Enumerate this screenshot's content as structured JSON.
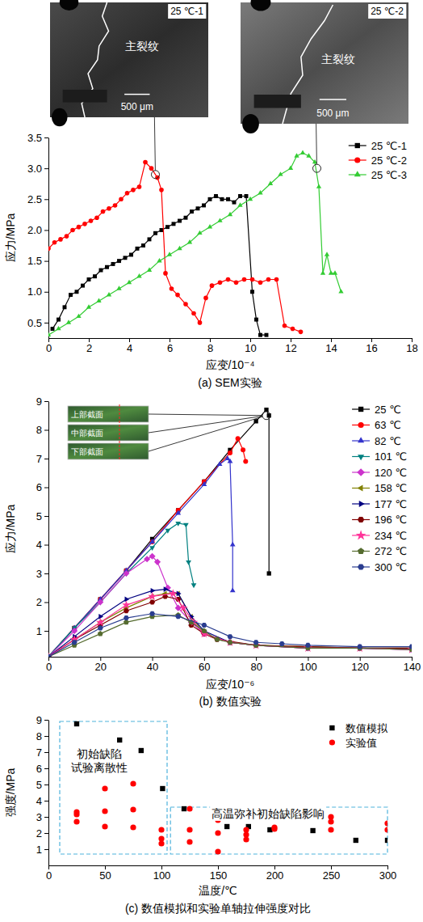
{
  "chart_data": [
    {
      "type": "line",
      "caption": "(a) SEM实验",
      "x_label": "应变/10⁻⁴",
      "y_label": "应力/MPa",
      "xlim": [
        0,
        18
      ],
      "xticks": [
        0,
        2,
        4,
        6,
        8,
        10,
        12,
        14,
        16,
        18
      ],
      "ylim": [
        0.25,
        3.5
      ],
      "yticks": [
        0.5,
        {
          "value": 1,
          "label": "1.0"
        },
        1.5,
        {
          "value": 2,
          "label": "2.0"
        },
        2.5,
        {
          "value": 3,
          "label": "3.0"
        },
        3.5
      ],
      "legend": "upper right",
      "series": [
        {
          "name": "25 ℃-1",
          "color": "#000000",
          "marker": "square",
          "x": [
            0.2,
            0.5,
            0.8,
            1.1,
            1.4,
            1.7,
            2.0,
            2.3,
            2.6,
            2.9,
            3.2,
            3.5,
            3.8,
            4.1,
            4.4,
            4.7,
            5.0,
            5.3,
            5.6,
            5.9,
            6.2,
            6.5,
            6.8,
            7.1,
            7.4,
            7.7,
            8.0,
            8.3,
            8.6,
            8.9,
            9.2,
            9.5,
            9.8,
            10.1,
            10.3,
            10.5,
            10.8
          ],
          "values": [
            0.4,
            0.55,
            0.75,
            0.95,
            1.0,
            1.1,
            1.2,
            1.25,
            1.35,
            1.4,
            1.45,
            1.5,
            1.55,
            1.6,
            1.7,
            1.75,
            1.85,
            1.95,
            2.0,
            2.05,
            2.1,
            2.15,
            2.2,
            2.3,
            2.35,
            2.4,
            2.5,
            2.55,
            2.5,
            2.5,
            2.45,
            2.55,
            2.55,
            1.0,
            0.55,
            0.3,
            0.3
          ]
        },
        {
          "name": "25 ℃-2",
          "color": "#ff0000",
          "marker": "circle",
          "x": [
            0,
            0.3,
            0.6,
            0.9,
            1.2,
            1.5,
            1.8,
            2.1,
            2.4,
            2.7,
            3.0,
            3.3,
            3.6,
            3.9,
            4.2,
            4.5,
            4.8,
            5.1,
            5.4,
            5.6,
            5.8,
            6.1,
            6.4,
            6.8,
            7.2,
            7.5,
            7.8,
            8.1,
            8.5,
            8.9,
            9.3,
            9.7,
            10.1,
            10.5,
            10.9,
            11.3,
            11.7,
            12.1,
            12.5
          ],
          "values": [
            1.7,
            1.8,
            1.85,
            1.9,
            2.0,
            2.05,
            2.1,
            2.15,
            2.2,
            2.3,
            2.35,
            2.4,
            2.5,
            2.6,
            2.65,
            2.7,
            3.1,
            3.0,
            2.85,
            2.65,
            1.3,
            1.05,
            0.95,
            0.8,
            0.65,
            0.5,
            0.9,
            1.1,
            1.15,
            1.2,
            1.15,
            1.2,
            1.2,
            1.15,
            1.2,
            1.2,
            0.45,
            0.4,
            0.35
          ]
        },
        {
          "name": "25 ℃-3",
          "color": "#33cc33",
          "marker": "triangle-up",
          "x": [
            0,
            0.5,
            1,
            1.5,
            2,
            2.5,
            3,
            3.5,
            4,
            4.5,
            5,
            5.5,
            6,
            6.5,
            7,
            7.5,
            8,
            8.5,
            9,
            9.5,
            10,
            10.5,
            11,
            11.5,
            12,
            12.3,
            12.6,
            12.9,
            13.2,
            13.4,
            13.6,
            13.8,
            14.0,
            14.2,
            14.5
          ],
          "values": [
            0.3,
            0.4,
            0.5,
            0.6,
            0.75,
            0.85,
            0.95,
            1.05,
            1.15,
            1.25,
            1.35,
            1.5,
            1.6,
            1.7,
            1.8,
            1.95,
            2.05,
            2.15,
            2.25,
            2.4,
            2.5,
            2.6,
            2.75,
            2.9,
            3.0,
            3.2,
            3.25,
            3.2,
            3.1,
            2.7,
            1.3,
            1.6,
            1.3,
            1.3,
            1.0
          ]
        }
      ],
      "insets": [
        {
          "label": "25 ℃-1",
          "crack_label": "主裂纹",
          "scale_label": "500 μm",
          "point": [
            5.3,
            2.9
          ]
        },
        {
          "label": "25 ℃-2",
          "crack_label": "主裂纹",
          "scale_label": "500 μm",
          "point": [
            13.3,
            3.0
          ]
        }
      ]
    },
    {
      "type": "line",
      "caption": "(b) 数值实验",
      "x_label": "应变/10⁻⁶",
      "y_label": "应力/MPa",
      "xlim": [
        0,
        140
      ],
      "xticks": [
        0,
        20,
        40,
        60,
        80,
        100,
        120,
        140
      ],
      "ylim": [
        0.1,
        9
      ],
      "yticks": [
        1,
        2,
        3,
        4,
        5,
        6,
        7,
        8,
        9
      ],
      "legend": "upper right",
      "series": [
        {
          "name": "25 ℃",
          "color": "#000000",
          "marker": "square",
          "x": [
            0,
            10,
            20,
            30,
            40,
            50,
            60,
            70,
            80,
            84,
            85,
            85
          ],
          "values": [
            0.1,
            1.1,
            2.1,
            3.1,
            4.2,
            5.2,
            6.2,
            7.3,
            8.3,
            8.7,
            8.5,
            3.0
          ]
        },
        {
          "name": "63 ℃",
          "color": "#ff0000",
          "marker": "circle",
          "x": [
            0,
            10,
            20,
            30,
            40,
            50,
            60,
            70,
            73,
            75,
            76
          ],
          "values": [
            0.1,
            1.1,
            2.1,
            3.1,
            4.1,
            5.2,
            6.2,
            7.2,
            7.7,
            7.3,
            6.9
          ]
        },
        {
          "name": "82 ℃",
          "color": "#3333cc",
          "marker": "triangle-up",
          "x": [
            0,
            10,
            20,
            30,
            40,
            50,
            60,
            66,
            69,
            70,
            71,
            71
          ],
          "values": [
            0.1,
            1.1,
            2.1,
            3.1,
            4.1,
            5.1,
            6.1,
            6.8,
            7.0,
            6.9,
            4.0,
            2.4
          ]
        },
        {
          "name": "101 ℃",
          "color": "#008080",
          "marker": "triangle-down",
          "x": [
            0,
            10,
            20,
            30,
            40,
            46,
            50,
            53,
            54,
            56
          ],
          "values": [
            0.1,
            1.1,
            2.0,
            3.0,
            3.9,
            4.5,
            4.75,
            4.7,
            3.4,
            2.6
          ]
        },
        {
          "name": "120 ℃",
          "color": "#cc33cc",
          "marker": "diamond",
          "x": [
            0,
            10,
            20,
            30,
            38,
            40,
            42,
            46,
            50,
            55,
            60,
            70,
            80,
            100,
            120,
            140
          ],
          "values": [
            0.1,
            1.0,
            2.0,
            3.0,
            3.5,
            3.6,
            3.4,
            2.5,
            1.8,
            1.3,
            0.9,
            0.6,
            0.5,
            0.4,
            0.4,
            0.35
          ]
        },
        {
          "name": "158 ℃",
          "color": "#808000",
          "marker": "triangle-left",
          "x": [
            0,
            10,
            20,
            30,
            40,
            45,
            50,
            55,
            60,
            70,
            80,
            100,
            120,
            140
          ],
          "values": [
            0.1,
            0.7,
            1.3,
            1.8,
            2.2,
            2.3,
            2.3,
            1.5,
            0.9,
            0.6,
            0.5,
            0.45,
            0.4,
            0.4
          ]
        },
        {
          "name": "177 ℃",
          "color": "#000080",
          "marker": "triangle-right",
          "x": [
            0,
            10,
            20,
            30,
            40,
            45,
            50,
            55,
            60,
            70,
            80,
            100,
            120,
            140
          ],
          "values": [
            0.1,
            0.8,
            1.5,
            2.1,
            2.4,
            2.45,
            2.3,
            1.5,
            1.0,
            0.6,
            0.5,
            0.4,
            0.4,
            0.35
          ]
        },
        {
          "name": "196 ℃",
          "color": "#800000",
          "marker": "hexagon",
          "x": [
            0,
            10,
            20,
            30,
            40,
            45,
            50,
            55,
            60,
            65,
            80,
            100,
            120,
            140
          ],
          "values": [
            0.1,
            0.7,
            1.2,
            1.7,
            2.0,
            2.2,
            2.1,
            1.2,
            0.9,
            0.7,
            0.5,
            0.45,
            0.4,
            0.4
          ]
        },
        {
          "name": "234 ℃",
          "color": "#ff3399",
          "marker": "star",
          "x": [
            0,
            10,
            20,
            30,
            40,
            48,
            52,
            56,
            60,
            70,
            80,
            100,
            120,
            140
          ],
          "values": [
            0.1,
            0.7,
            1.3,
            1.9,
            2.2,
            2.3,
            1.8,
            1.3,
            0.9,
            0.6,
            0.5,
            0.4,
            0.4,
            0.35
          ]
        },
        {
          "name": "272 ℃",
          "color": "#556b2f",
          "marker": "pentagon",
          "x": [
            0,
            10,
            20,
            30,
            40,
            50,
            55,
            60,
            65,
            70,
            80,
            100,
            120,
            140
          ],
          "values": [
            0.1,
            0.5,
            0.9,
            1.3,
            1.5,
            1.55,
            1.3,
            1.0,
            0.7,
            0.6,
            0.5,
            0.4,
            0.4,
            0.35
          ]
        },
        {
          "name": "300 ℃",
          "color": "#2a3d8f",
          "marker": "hexagon",
          "x": [
            0,
            10,
            20,
            30,
            40,
            50,
            60,
            70,
            80,
            90,
            100,
            120,
            140
          ],
          "values": [
            0.1,
            0.6,
            1.1,
            1.45,
            1.6,
            1.5,
            1.2,
            0.8,
            0.6,
            0.55,
            0.5,
            0.45,
            0.45
          ]
        }
      ],
      "insets": [
        {
          "labels": [
            "上部截面",
            "中部截面",
            "下部截面"
          ],
          "point": [
            84,
            8.5
          ]
        }
      ]
    },
    {
      "type": "scatter",
      "caption": "(c) 数值模拟和实验单轴拉伸强度对比",
      "x_label": "温度/℃",
      "y_label": "强度/MPa",
      "xlim": [
        0,
        300
      ],
      "xticks": [
        0,
        50,
        100,
        150,
        200,
        250,
        300
      ],
      "ylim": [
        0,
        9
      ],
      "yticks": [
        1,
        2,
        3,
        4,
        5,
        6,
        7,
        8,
        9
      ],
      "legend": "upper right",
      "series": [
        {
          "name": "数值模拟",
          "color": "#000000",
          "marker": "square",
          "x": [
            25,
            63,
            82,
            101,
            120,
            158,
            177,
            196,
            234,
            272,
            300
          ],
          "values": [
            8.75,
            7.75,
            7.1,
            4.75,
            3.5,
            2.4,
            2.4,
            2.2,
            2.15,
            1.55,
            1.55
          ]
        },
        {
          "name": "实验值",
          "color": "#ff0000",
          "marker": "circle",
          "x": [
            25,
            25,
            25,
            50,
            50,
            50,
            75,
            75,
            75,
            100,
            100,
            100,
            125,
            125,
            125,
            150,
            150,
            150,
            175,
            175,
            175,
            200,
            200,
            250,
            250,
            250,
            300,
            300
          ],
          "values": [
            3.3,
            3.15,
            2.7,
            4.75,
            3.35,
            2.4,
            5.05,
            3.45,
            2.35,
            2.2,
            1.65,
            1.35,
            3.5,
            2.2,
            1.45,
            2.8,
            2.0,
            0.85,
            2.2,
            1.9,
            1.6,
            2.35,
            2.25,
            3.0,
            2.7,
            2.2,
            2.6,
            2.2
          ]
        }
      ],
      "annotations": [
        {
          "text_lines": [
            "初始缺陷",
            "试验离散性"
          ],
          "region": {
            "x": [
              10,
              105
            ],
            "y": [
              0.7,
              8.9
            ]
          }
        },
        {
          "text_lines": [
            "高温弥补初始缺陷影响"
          ],
          "region": {
            "x": [
              108,
              300
            ],
            "y": [
              0.7,
              3.6
            ]
          }
        }
      ]
    }
  ]
}
